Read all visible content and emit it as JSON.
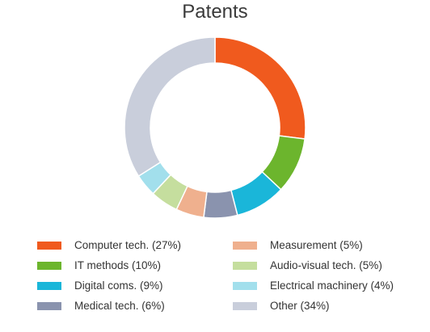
{
  "chart_data": {
    "type": "pie",
    "title": "Patents",
    "donut": true,
    "legend_position": "bottom",
    "slices": [
      {
        "label": "Computer tech.",
        "legend": "Computer tech. (27%)",
        "value": 27,
        "color": "#f05a1e"
      },
      {
        "label": "IT methods",
        "legend": "IT methods (10%)",
        "value": 10,
        "color": "#6cb52d"
      },
      {
        "label": "Digital coms.",
        "legend": "Digital coms. (9%)",
        "value": 9,
        "color": "#1ab6d9"
      },
      {
        "label": "Medical tech.",
        "legend": "Medical tech. (6%)",
        "value": 6,
        "color": "#8a93ae"
      },
      {
        "label": "Measurement",
        "legend": "Measurement (5%)",
        "value": 5,
        "color": "#efb08e"
      },
      {
        "label": "Audio-visual tech.",
        "legend": "Audio-visual tech. (5%)",
        "value": 5,
        "color": "#c5de9e"
      },
      {
        "label": "Electrical machinery",
        "legend": "Electrical machinery (4%)",
        "value": 4,
        "color": "#a2dfec"
      },
      {
        "label": "Other",
        "legend": "Other (34%)",
        "value": 34,
        "color": "#c9cedb"
      }
    ]
  }
}
